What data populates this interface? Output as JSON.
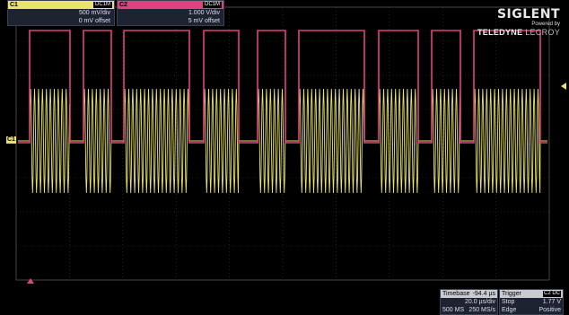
{
  "logo": {
    "brand": "SIGLENT",
    "powered": "Powered by",
    "teledyne": "TELEDYNE",
    "lecroy": "LECROY"
  },
  "markers": {
    "c1": "C1",
    "c2": "C2"
  },
  "channels": [
    {
      "name": "C1",
      "coupling": "DC1M",
      "vdiv": "500 mV/div",
      "offset": "0 mV offset",
      "color": "#e8e36a"
    },
    {
      "name": "C2",
      "coupling": "DC1M",
      "vdiv": "1.000 V/div",
      "offset": "5 mV offset",
      "color": "#e0417f"
    }
  ],
  "timebase": {
    "label": "Timebase",
    "value": "-94.4 µs",
    "tdiv": "20.0 µs/div",
    "memory": "500 MS",
    "rate": "250 MS/s"
  },
  "trigger": {
    "label": "Trigger",
    "source": "C2 DC",
    "mode": "Stop",
    "level": "1.77 V",
    "type": "Edge",
    "slope": "Positive"
  },
  "colors": {
    "c1": "#e8e36a",
    "c2": "#e0417f",
    "grid": "#3a3a3a",
    "background": "#000000"
  }
}
